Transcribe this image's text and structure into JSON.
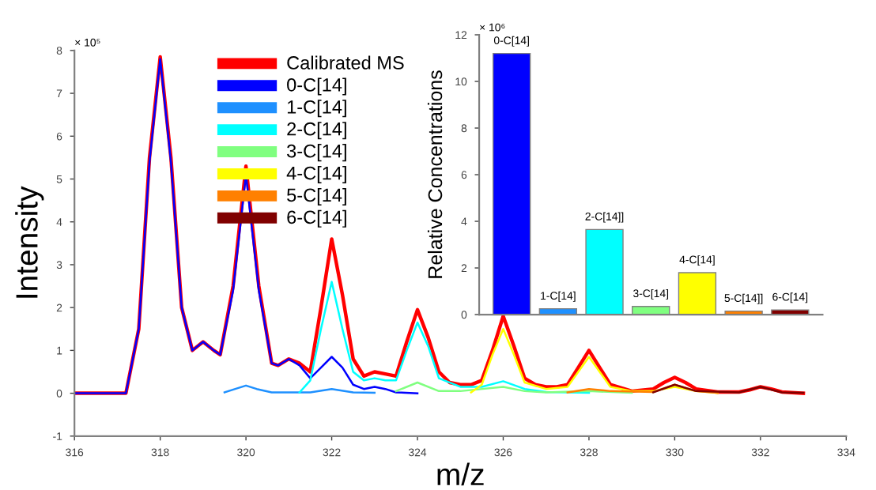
{
  "chart_data": [
    {
      "type": "line",
      "xlabel": "m/z",
      "ylabel": "Intensity",
      "annotations": [
        "× 10⁵"
      ],
      "xlim": [
        316,
        334
      ],
      "xticks": [
        316,
        318,
        320,
        322,
        324,
        326,
        328,
        330,
        332,
        334
      ],
      "ylim": [
        -1,
        8
      ],
      "yticks": [
        -1,
        0,
        1,
        2,
        3,
        4,
        5,
        6,
        7,
        8
      ],
      "legend": "top",
      "grid": false,
      "series": [
        {
          "name": "Calibrated MS",
          "color": "#ff0000",
          "x": [
            316,
            317.2,
            317.5,
            317.75,
            318,
            318.25,
            318.5,
            318.75,
            319,
            319.25,
            319.4,
            319.7,
            320,
            320.3,
            320.6,
            320.75,
            321,
            321.25,
            321.5,
            321.75,
            322,
            322.25,
            322.5,
            322.75,
            323,
            323.25,
            323.5,
            323.75,
            324,
            324.25,
            324.5,
            324.75,
            325,
            325.25,
            325.5,
            325.75,
            326,
            326.25,
            326.5,
            326.75,
            327,
            327.25,
            327.5,
            327.75,
            328,
            328.25,
            328.5,
            329,
            329.5,
            329.75,
            330,
            330.25,
            330.5,
            331,
            331.5,
            331.75,
            332,
            332.25,
            332.5,
            333
          ],
          "values": [
            0,
            0,
            1.5,
            5.5,
            7.85,
            5.5,
            2,
            1.0,
            1.2,
            1.0,
            0.9,
            2.5,
            5.3,
            2.5,
            0.7,
            0.65,
            0.8,
            0.7,
            0.5,
            2.0,
            3.6,
            2.3,
            0.8,
            0.4,
            0.5,
            0.45,
            0.4,
            1.2,
            1.95,
            1.3,
            0.5,
            0.25,
            0.2,
            0.2,
            0.3,
            1.0,
            1.8,
            1.1,
            0.35,
            0.2,
            0.15,
            0.15,
            0.2,
            0.6,
            1.0,
            0.6,
            0.2,
            0.05,
            0.1,
            0.25,
            0.37,
            0.25,
            0.1,
            0.03,
            0.03,
            0.08,
            0.15,
            0.1,
            0.03,
            0
          ]
        },
        {
          "name": "0-C[14]",
          "color": "#0000ff",
          "x": [
            316,
            317.2,
            317.5,
            317.75,
            318,
            318.25,
            318.5,
            318.75,
            319,
            319.25,
            319.4,
            319.7,
            320,
            320.3,
            320.6,
            320.75,
            321,
            321.25,
            321.5,
            321.75,
            322,
            322.25,
            322.5,
            322.75,
            323,
            323.25,
            323.5,
            324
          ],
          "values": [
            0,
            0,
            1.5,
            5.4,
            7.8,
            5.4,
            2,
            1.0,
            1.2,
            1.0,
            0.9,
            2.4,
            5.1,
            2.4,
            0.7,
            0.65,
            0.8,
            0.65,
            0.35,
            0.6,
            0.85,
            0.6,
            0.2,
            0.1,
            0.15,
            0.1,
            0.02,
            0
          ]
        },
        {
          "name": "1-C[14]",
          "color": "#1e90ff",
          "x": [
            319.5,
            319.75,
            320,
            320.25,
            320.6,
            321.5,
            322,
            322.5,
            323
          ],
          "values": [
            0.02,
            0.1,
            0.18,
            0.1,
            0.02,
            0.02,
            0.1,
            0.02,
            0.01
          ]
        },
        {
          "name": "2-C[14]",
          "color": "#00ffff",
          "x": [
            321.25,
            321.5,
            321.75,
            322,
            322.25,
            322.5,
            322.75,
            323,
            323.25,
            323.5,
            323.75,
            324,
            324.25,
            324.5,
            325,
            325.5,
            326,
            326.5,
            327,
            328
          ],
          "values": [
            0.02,
            0.3,
            1.5,
            2.6,
            1.5,
            0.5,
            0.3,
            0.35,
            0.3,
            0.3,
            1.0,
            1.65,
            1.1,
            0.35,
            0.15,
            0.15,
            0.28,
            0.1,
            0.03,
            0.01
          ]
        },
        {
          "name": "3-C[14]",
          "color": "#80ff80",
          "x": [
            323.5,
            324,
            324.5,
            325,
            326,
            326.5,
            327,
            328,
            329
          ],
          "values": [
            0.05,
            0.25,
            0.05,
            0.05,
            0.15,
            0.05,
            0.02,
            0.05,
            0.01
          ]
        },
        {
          "name": "4-C[14]",
          "color": "#ffff00",
          "x": [
            325.25,
            325.5,
            325.75,
            326,
            326.25,
            326.5,
            327,
            327.5,
            327.75,
            328,
            328.25,
            328.5,
            329,
            329.5,
            330,
            330.5,
            331
          ],
          "values": [
            0.02,
            0.2,
            0.9,
            1.5,
            0.9,
            0.25,
            0.1,
            0.15,
            0.5,
            0.85,
            0.5,
            0.15,
            0.05,
            0.05,
            0.15,
            0.05,
            0.01
          ]
        },
        {
          "name": "5-C[14]",
          "color": "#ff8000",
          "x": [
            327.5,
            328,
            328.5,
            329.5,
            330,
            330.5,
            331
          ],
          "values": [
            0.02,
            0.1,
            0.05,
            0.03,
            0.2,
            0.05,
            0.01
          ]
        },
        {
          "name": "6-C[14]",
          "color": "#800000",
          "x": [
            329.5,
            330,
            330.5,
            331.5,
            332,
            332.5,
            333
          ],
          "values": [
            0.02,
            0.2,
            0.05,
            0.02,
            0.15,
            0.02,
            0.01
          ]
        }
      ]
    },
    {
      "type": "bar",
      "ylabel": "Relative Concentrations",
      "annotations": [
        "× 10⁶"
      ],
      "ylim": [
        0,
        12
      ],
      "yticks": [
        0,
        2,
        4,
        6,
        8,
        10,
        12
      ],
      "tick_labels": "y",
      "grid": false,
      "categories": [
        "0-C[14]",
        "1-C[14]",
        "2-C[14]]",
        "3-C[14]",
        "4-C[14]",
        "5-C[14]]",
        "6-C[14]"
      ],
      "values": [
        11.2,
        0.25,
        3.65,
        0.35,
        1.8,
        0.15,
        0.2
      ],
      "colors": [
        "#0000ff",
        "#1e90ff",
        "#00ffff",
        "#80ff80",
        "#ffff00",
        "#ff8000",
        "#800000"
      ]
    }
  ]
}
